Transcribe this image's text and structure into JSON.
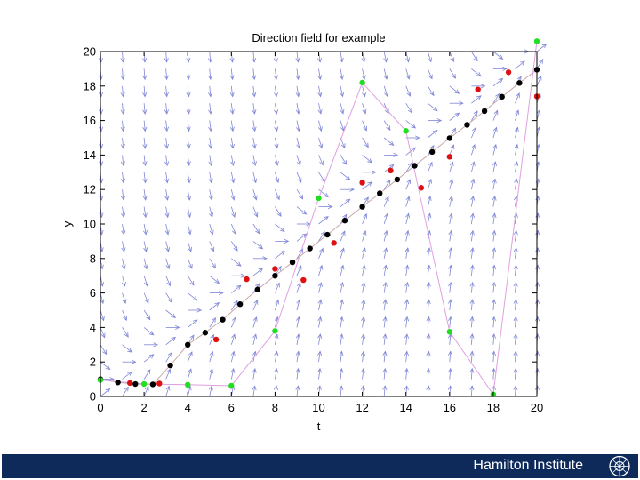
{
  "chart_data": {
    "type": "scatter",
    "title": "Direction field for example",
    "xlabel": "t",
    "ylabel": "y",
    "xlim": [
      0,
      20
    ],
    "ylim": [
      0,
      20
    ],
    "xticks": [
      0,
      2,
      4,
      6,
      8,
      10,
      12,
      14,
      16,
      18,
      20
    ],
    "yticks": [
      0,
      2,
      4,
      6,
      8,
      10,
      12,
      14,
      16,
      18,
      20
    ],
    "grid": false,
    "legend": "none",
    "direction_field": {
      "color": "#7f86d6",
      "equation_slope_hint": "y' = 1 - (y - t)"
    },
    "series": [
      {
        "color": "#000000",
        "marker": "dot",
        "line": "#c9a9a9",
        "x": [
          0,
          0.8,
          1.6,
          2.4,
          3.2,
          4.0,
          4.8,
          5.6,
          6.4,
          7.2,
          8.0,
          8.8,
          9.6,
          10.4,
          11.2,
          12.0,
          12.8,
          13.6,
          14.4,
          15.2,
          16.0,
          16.8,
          17.6,
          18.4,
          19.2,
          20.0
        ],
        "y": [
          1.0,
          0.81,
          0.72,
          0.7,
          1.8,
          3.0,
          3.7,
          4.45,
          5.35,
          6.2,
          7.0,
          7.78,
          8.58,
          9.38,
          10.2,
          11.0,
          11.78,
          12.58,
          13.38,
          14.18,
          14.98,
          15.75,
          16.55,
          17.38,
          18.18,
          18.95
        ]
      },
      {
        "color": "#dd1111",
        "marker": "dot",
        "x": [
          1.35,
          2.7,
          5.3,
          6.7,
          8.0,
          9.3,
          10.7,
          12.0,
          13.3,
          14.7,
          16.0,
          17.3,
          18.7,
          20.0
        ],
        "y": [
          0.78,
          0.75,
          3.3,
          6.8,
          7.4,
          6.75,
          8.9,
          12.4,
          13.1,
          12.1,
          13.9,
          17.8,
          18.8,
          17.4
        ]
      },
      {
        "color": "#22dd22",
        "marker": "dot",
        "line": "#e0a0e0",
        "x": [
          0,
          2,
          4,
          6,
          8,
          10,
          12,
          14,
          16,
          18,
          20
        ],
        "y": [
          0.95,
          0.72,
          0.68,
          0.62,
          3.8,
          11.5,
          18.2,
          15.4,
          3.75,
          0.12,
          20.6
        ]
      }
    ]
  },
  "footer": {
    "institution": "Hamilton Institute",
    "background": "#0d2a5a",
    "logo_icon": "hamilton-logo-icon"
  }
}
